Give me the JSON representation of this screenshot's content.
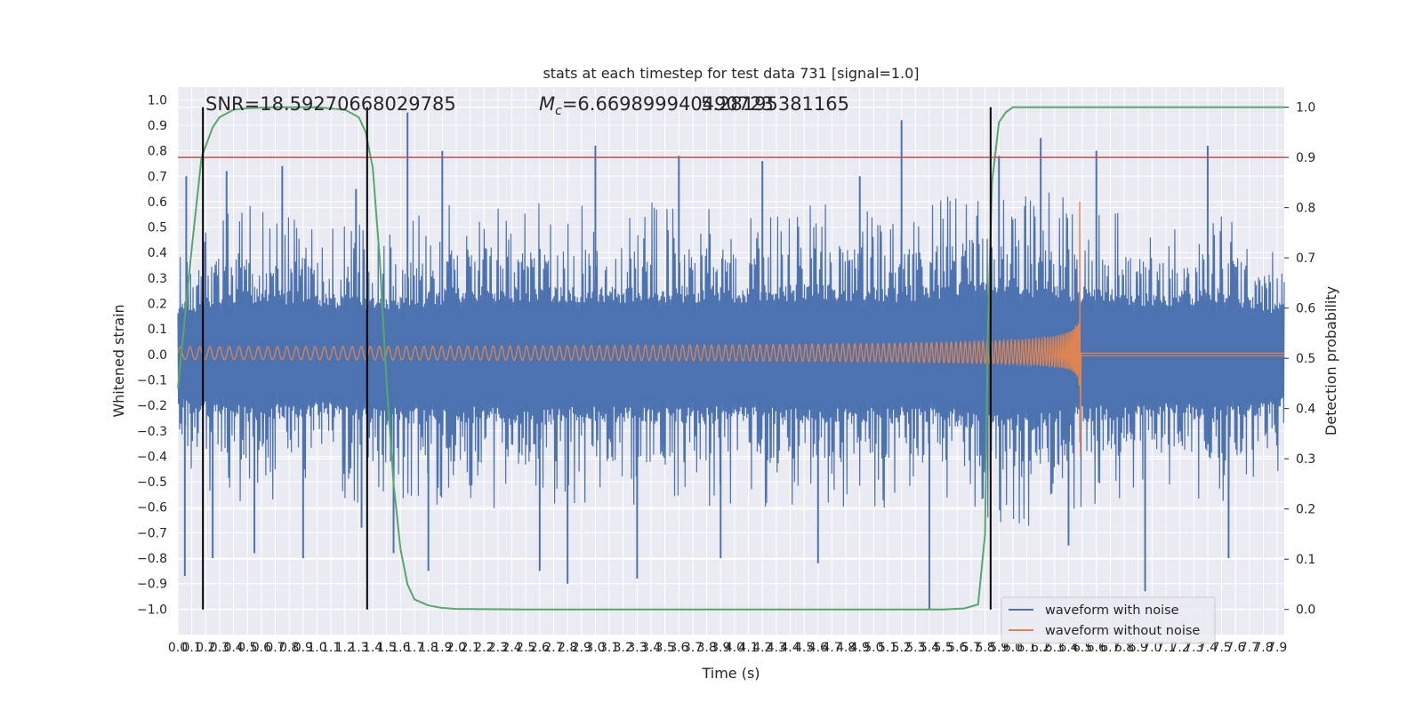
{
  "chart_data": {
    "type": "line",
    "title": "stats at each timestep for test data 731 [signal=1.0]",
    "xlabel": "Time (s)",
    "ylabel": "Whitened strain",
    "y2label": "Detection probability",
    "xlim": [
      0.0,
      7.95
    ],
    "ylim": [
      -1.1,
      1.05
    ],
    "y2lim": [
      -0.05,
      1.04
    ],
    "x_tick_labels": [
      "0.0",
      "0.1",
      "0.2",
      "0.3",
      "0.4",
      "0.5",
      "0.6",
      "0.7",
      "0.8",
      "0.9",
      "1.0",
      "1.1",
      "1.2",
      "1.3",
      "1.4",
      "1.5",
      "1.6",
      "1.7",
      "1.8",
      "1.9",
      "2.0",
      "2.1",
      "2.2",
      "2.3",
      "2.4",
      "2.5",
      "2.6",
      "2.7",
      "2.8",
      "2.9",
      "3.0",
      "3.1",
      "3.2",
      "3.3",
      "3.4",
      "3.5",
      "3.6",
      "3.7",
      "3.8",
      "3.9",
      "4.0",
      "4.1",
      "4.2",
      "4.3",
      "4.4",
      "4.5",
      "4.6",
      "4.7",
      "4.8",
      "4.9",
      "5.0",
      "5.1",
      "5.2",
      "5.3",
      "5.4",
      "5.5",
      "5.6",
      "5.7",
      "5.8",
      "5.9",
      "6.0",
      "6.1",
      "6.2",
      "6.3",
      "6.4",
      "6.5",
      "6.6",
      "6.7",
      "6.8",
      "6.9",
      "7.0",
      "7.1",
      "7.2",
      "7.3",
      "7.4",
      "7.5",
      "7.6",
      "7.7",
      "7.8",
      "7.9"
    ],
    "y_tick_labels": [
      "−1.0",
      "−0.9",
      "−0.8",
      "−0.7",
      "−0.6",
      "−0.5",
      "−0.4",
      "−0.3",
      "−0.2",
      "−0.1",
      "0.0",
      "0.1",
      "0.2",
      "0.3",
      "0.4",
      "0.5",
      "0.6",
      "0.7",
      "0.8",
      "0.9",
      "1.0"
    ],
    "y2_tick_labels": [
      "0.0",
      "0.1",
      "0.2",
      "0.3",
      "0.4",
      "0.5",
      "0.6",
      "0.7",
      "0.8",
      "0.9",
      "1.0"
    ],
    "annotations": {
      "snr": "SNR=18.59270668029785",
      "mc_symbol": "M",
      "mc_sub": "c",
      "mc_rest": "=6.669899940490723",
      "mc_overlap": "5.28195381165"
    },
    "threshold": {
      "axis": "y2",
      "value": 0.9,
      "color": "#c44e52"
    },
    "vertical_lines_x": [
      0.18,
      1.36,
      5.84
    ],
    "series": [
      {
        "name": "waveform with noise",
        "color": "#4c72b0",
        "band_x": [
          0.0,
          0.5,
          1.0,
          1.5,
          2.0,
          2.5,
          3.0,
          3.5,
          4.0,
          4.5,
          5.0,
          5.5,
          6.0,
          6.5,
          7.0,
          7.5,
          7.95
        ],
        "band_hi": [
          0.45,
          0.6,
          0.55,
          0.5,
          0.6,
          0.6,
          0.6,
          0.6,
          0.6,
          0.62,
          0.6,
          0.62,
          0.68,
          0.6,
          0.55,
          0.58,
          0.45
        ],
        "band_lo": [
          -0.5,
          -0.6,
          -0.55,
          -0.62,
          -0.6,
          -0.62,
          -0.6,
          -0.62,
          -0.6,
          -0.62,
          -0.6,
          -0.62,
          -0.7,
          -0.6,
          -0.55,
          -0.6,
          -0.5
        ],
        "spikes_x": [
          0.05,
          0.06,
          0.25,
          0.35,
          0.55,
          0.75,
          0.9,
          1.28,
          1.32,
          1.55,
          1.65,
          1.8,
          1.9,
          2.6,
          2.8,
          3.0,
          3.3,
          3.6,
          3.9,
          4.2,
          4.6,
          4.9,
          5.2,
          5.4,
          5.9,
          6.2,
          6.4,
          6.6,
          6.95,
          7.4,
          7.55
        ],
        "spikes_y": [
          -0.87,
          0.7,
          -0.8,
          0.72,
          -0.78,
          0.74,
          -0.8,
          0.65,
          -0.68,
          -0.78,
          0.95,
          -0.85,
          0.8,
          -0.85,
          -0.9,
          0.82,
          -0.88,
          0.78,
          -0.8,
          0.76,
          -0.82,
          0.7,
          0.92,
          -1.0,
          0.78,
          0.85,
          -0.75,
          0.8,
          -0.93,
          0.82,
          -0.8
        ]
      },
      {
        "name": "waveform without noise",
        "color": "#dd8452",
        "chirp_start_s": 0.0,
        "merger_s": 6.48,
        "end_s": 7.95,
        "start_amplitude": 0.03,
        "peak_positive": 0.6,
        "peak_negative": -0.4,
        "ringdown_level": 0.005
      },
      {
        "name": "detection probability",
        "axis": "y2",
        "color": "#55a868",
        "x": [
          0.0,
          0.1,
          0.17,
          0.25,
          0.3,
          0.4,
          0.5,
          0.7,
          1.0,
          1.2,
          1.3,
          1.35,
          1.4,
          1.45,
          1.5,
          1.55,
          1.6,
          1.65,
          1.7,
          1.8,
          1.9,
          2.0,
          2.5,
          3.0,
          4.0,
          5.0,
          5.5,
          5.65,
          5.75,
          5.8,
          5.82,
          5.85,
          5.9,
          5.95,
          6.0,
          6.5,
          7.0,
          7.95
        ],
        "values": [
          0.44,
          0.72,
          0.9,
          0.96,
          0.98,
          0.995,
          0.998,
          1.0,
          1.0,
          0.995,
          0.98,
          0.95,
          0.88,
          0.7,
          0.45,
          0.25,
          0.12,
          0.05,
          0.02,
          0.008,
          0.003,
          0.001,
          0.0,
          0.0,
          0.0,
          0.0,
          0.0,
          0.002,
          0.01,
          0.15,
          0.55,
          0.85,
          0.97,
          0.99,
          1.0,
          1.0,
          1.0,
          1.0
        ]
      }
    ],
    "legend": {
      "placement": "lower-right",
      "entries": [
        {
          "label": "waveform with noise",
          "color": "#4c72b0"
        },
        {
          "label": "waveform without noise",
          "color": "#dd8452"
        }
      ]
    },
    "grid": true
  }
}
